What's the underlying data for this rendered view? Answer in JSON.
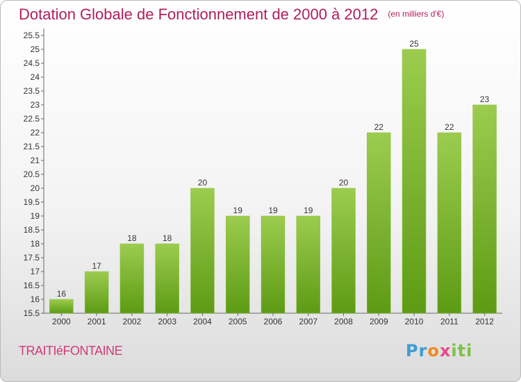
{
  "header": {
    "title": "Dotation Globale de Fonctionnement de 2000 à 2012",
    "unit": "(en milliers d'€)"
  },
  "footer": {
    "town": "TRAITIéFONTAINE",
    "logo_parts": [
      "Pr",
      "o",
      "x",
      "iti"
    ]
  },
  "colors": {
    "title": "#b01e5b",
    "bar_top": "#9ccc4f",
    "bar_bottom": "#5d9b14"
  },
  "chart_data": {
    "type": "bar",
    "title": "Dotation Globale de Fonctionnement de 2000 à 2012",
    "subtitle": "(en milliers d'€)",
    "categories": [
      "2000",
      "2001",
      "2002",
      "2003",
      "2004",
      "2005",
      "2006",
      "2007",
      "2008",
      "2009",
      "2010",
      "2011",
      "2012"
    ],
    "values": [
      16,
      17,
      18,
      18,
      20,
      19,
      19,
      19,
      20,
      22,
      25,
      22,
      23
    ],
    "ylim": [
      15.5,
      25.5
    ],
    "yticks": [
      "15.5",
      "16",
      "16.5",
      "17",
      "17.5",
      "18",
      "18.5",
      "19",
      "19.5",
      "20",
      "20.5",
      "21",
      "21.5",
      "22",
      "22.5",
      "23",
      "23.5",
      "24",
      "24.5",
      "25",
      "25.5"
    ],
    "grid": false,
    "legend": "none"
  }
}
